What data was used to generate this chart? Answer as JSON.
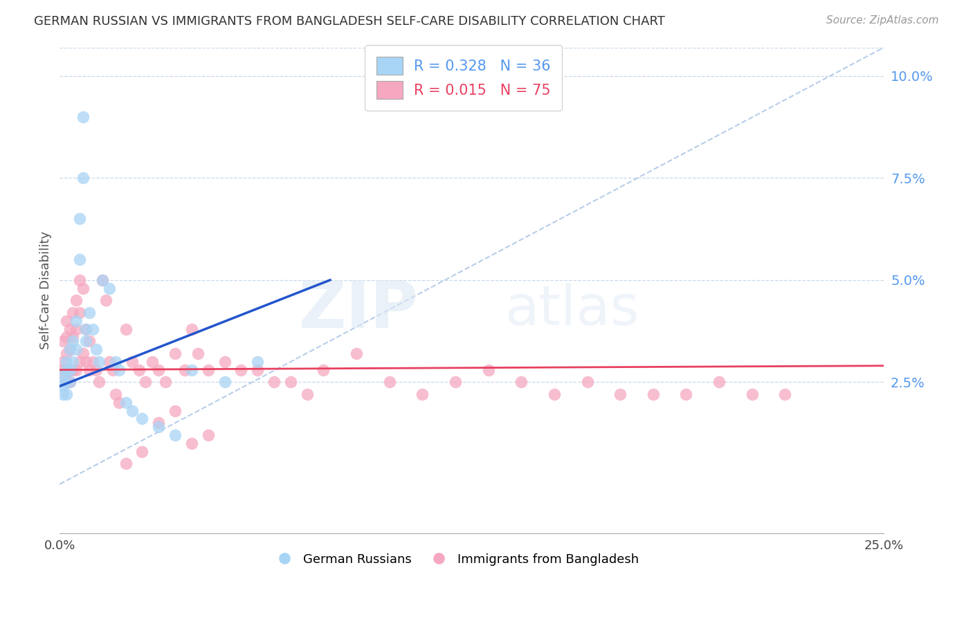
{
  "title": "GERMAN RUSSIAN VS IMMIGRANTS FROM BANGLADESH SELF-CARE DISABILITY CORRELATION CHART",
  "source": "Source: ZipAtlas.com",
  "ylabel": "Self-Care Disability",
  "xlim": [
    0.0,
    0.25
  ],
  "ylim": [
    -0.012,
    0.107
  ],
  "yticks": [
    0.025,
    0.05,
    0.075,
    0.1
  ],
  "xticks": [
    0.0,
    0.05,
    0.1,
    0.15,
    0.2,
    0.25
  ],
  "ytick_labels": [
    "2.5%",
    "5.0%",
    "7.5%",
    "10.0%"
  ],
  "color_blue": "#a8d4f5",
  "color_pink": "#f5a8c0",
  "trendline_blue": "#2255cc",
  "trendline_pink": "#e84060",
  "diagonal_color": "#b0c8e8",
  "legend_R1": "R = 0.328",
  "legend_N1": "N = 36",
  "legend_R2": "R = 0.015",
  "legend_N2": "N = 75",
  "watermark_zip": "ZIP",
  "watermark_atlas": "atlas",
  "background": "#ffffff",
  "grid_color": "#c8d8e8",
  "blue_trend_x": [
    0.0,
    0.082
  ],
  "blue_trend_y": [
    0.024,
    0.05
  ],
  "pink_trend_x": [
    0.0,
    0.25
  ],
  "pink_trend_y": [
    0.028,
    0.029
  ],
  "blue_x": [
    0.001,
    0.001,
    0.001,
    0.001,
    0.002,
    0.002,
    0.002,
    0.003,
    0.003,
    0.003,
    0.004,
    0.004,
    0.005,
    0.005,
    0.006,
    0.006,
    0.007,
    0.007,
    0.008,
    0.008,
    0.009,
    0.01,
    0.011,
    0.012,
    0.013,
    0.015,
    0.017,
    0.018,
    0.02,
    0.022,
    0.025,
    0.03,
    0.035,
    0.04,
    0.05,
    0.06
  ],
  "blue_y": [
    0.027,
    0.025,
    0.024,
    0.022,
    0.03,
    0.028,
    0.022,
    0.033,
    0.028,
    0.025,
    0.035,
    0.03,
    0.04,
    0.033,
    0.065,
    0.055,
    0.075,
    0.09,
    0.038,
    0.035,
    0.042,
    0.038,
    0.033,
    0.03,
    0.05,
    0.048,
    0.03,
    0.028,
    0.02,
    0.018,
    0.016,
    0.014,
    0.012,
    0.028,
    0.025,
    0.03
  ],
  "pink_x": [
    0.001,
    0.001,
    0.001,
    0.001,
    0.002,
    0.002,
    0.002,
    0.002,
    0.003,
    0.003,
    0.003,
    0.003,
    0.004,
    0.004,
    0.004,
    0.005,
    0.005,
    0.005,
    0.006,
    0.006,
    0.006,
    0.007,
    0.007,
    0.008,
    0.008,
    0.009,
    0.009,
    0.01,
    0.011,
    0.012,
    0.013,
    0.014,
    0.015,
    0.016,
    0.017,
    0.018,
    0.02,
    0.022,
    0.024,
    0.026,
    0.028,
    0.03,
    0.032,
    0.035,
    0.038,
    0.04,
    0.042,
    0.045,
    0.05,
    0.055,
    0.06,
    0.065,
    0.07,
    0.075,
    0.08,
    0.09,
    0.1,
    0.11,
    0.12,
    0.13,
    0.14,
    0.15,
    0.16,
    0.17,
    0.18,
    0.19,
    0.2,
    0.21,
    0.22,
    0.02,
    0.025,
    0.03,
    0.035,
    0.04,
    0.045
  ],
  "pink_y": [
    0.03,
    0.028,
    0.026,
    0.035,
    0.04,
    0.036,
    0.032,
    0.025,
    0.038,
    0.033,
    0.028,
    0.025,
    0.042,
    0.036,
    0.028,
    0.045,
    0.038,
    0.028,
    0.05,
    0.042,
    0.03,
    0.048,
    0.032,
    0.038,
    0.03,
    0.035,
    0.028,
    0.03,
    0.028,
    0.025,
    0.05,
    0.045,
    0.03,
    0.028,
    0.022,
    0.02,
    0.038,
    0.03,
    0.028,
    0.025,
    0.03,
    0.028,
    0.025,
    0.032,
    0.028,
    0.038,
    0.032,
    0.028,
    0.03,
    0.028,
    0.028,
    0.025,
    0.025,
    0.022,
    0.028,
    0.032,
    0.025,
    0.022,
    0.025,
    0.028,
    0.025,
    0.022,
    0.025,
    0.022,
    0.022,
    0.022,
    0.025,
    0.022,
    0.022,
    0.005,
    0.008,
    0.015,
    0.018,
    0.01,
    0.012
  ]
}
